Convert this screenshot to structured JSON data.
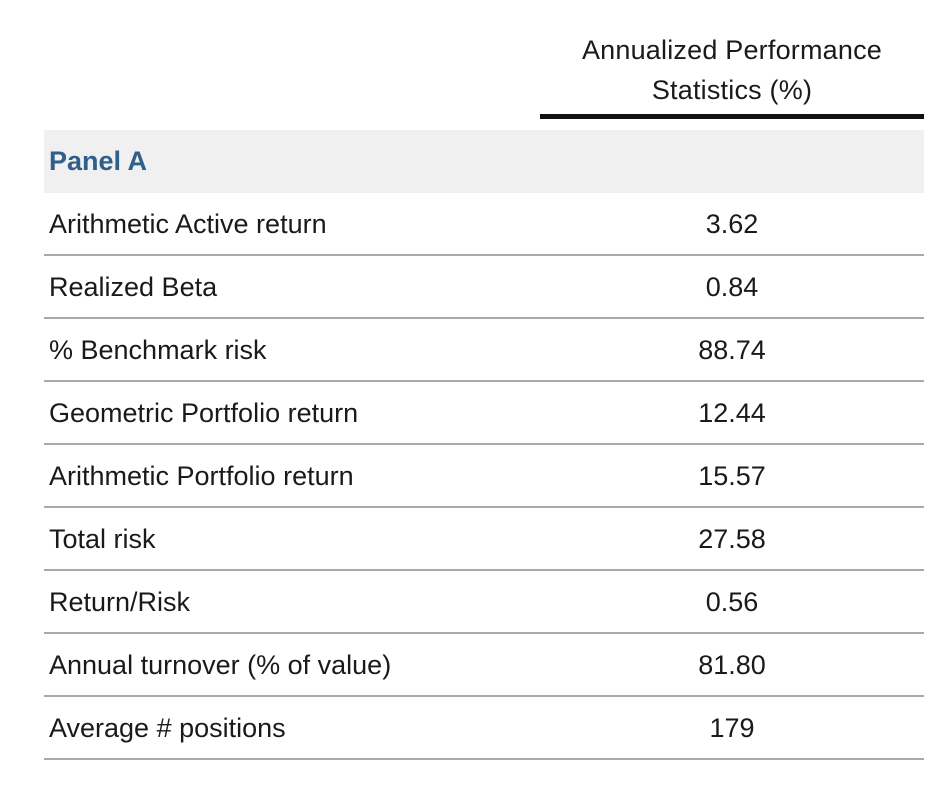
{
  "table": {
    "column_header": {
      "line1": "Annualized Performance",
      "line2": "Statistics (%)"
    },
    "panel_label": "Panel A",
    "rows": [
      {
        "label": "Arithmetic Active return",
        "value": "3.62"
      },
      {
        "label": "Realized Beta",
        "value": "0.84"
      },
      {
        "label": "% Benchmark risk",
        "value": "88.74"
      },
      {
        "label": "Geometric Portfolio return",
        "value": "12.44"
      },
      {
        "label": "Arithmetic Portfolio return",
        "value": "15.57"
      },
      {
        "label": "Total risk",
        "value": "27.58"
      },
      {
        "label": "Return/Risk",
        "value": "0.56"
      },
      {
        "label": "Annual turnover (% of value)",
        "value": "81.80"
      },
      {
        "label": "Average # positions",
        "value": "179"
      }
    ]
  },
  "colors": {
    "panel_label": "#2f5f8a",
    "panel_background": "#f0f0f0",
    "header_rule": "#111111",
    "row_divider": "#a9a9a9"
  }
}
